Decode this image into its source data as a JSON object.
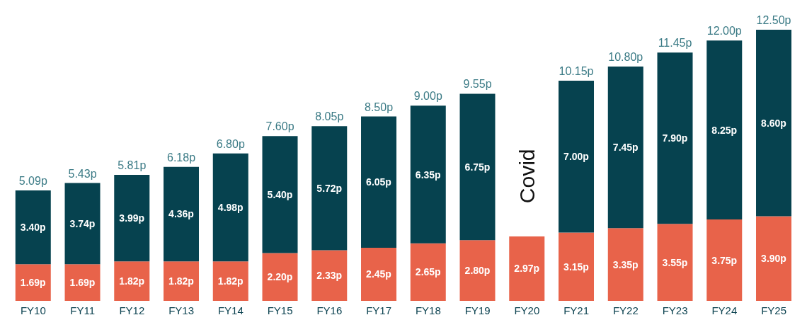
{
  "chart_data": {
    "type": "bar",
    "stacked": true,
    "categories": [
      "FY10",
      "FY11",
      "FY12",
      "FY13",
      "FY14",
      "FY15",
      "FY16",
      "FY17",
      "FY18",
      "FY19",
      "FY20",
      "FY21",
      "FY22",
      "FY23",
      "FY24",
      "FY25"
    ],
    "series": [
      {
        "color": "#e8634a",
        "values": [
          1.69,
          1.69,
          1.82,
          1.82,
          1.82,
          2.2,
          2.33,
          2.45,
          2.65,
          2.8,
          2.97,
          3.15,
          3.35,
          3.55,
          3.75,
          3.9
        ],
        "value_labels": [
          "1.69p",
          "1.69p",
          "1.82p",
          "1.82p",
          "1.82p",
          "2.20p",
          "2.33p",
          "2.45p",
          "2.65p",
          "2.80p",
          "2.97p",
          "3.15p",
          "3.35p",
          "3.55p",
          "3.75p",
          "3.90p"
        ]
      },
      {
        "color": "#06424f",
        "values": [
          3.4,
          3.74,
          3.99,
          4.36,
          4.98,
          5.4,
          5.72,
          6.05,
          6.35,
          6.75,
          null,
          7.0,
          7.45,
          7.9,
          8.25,
          8.6
        ],
        "value_labels": [
          "3.40p",
          "3.74p",
          "3.99p",
          "4.36p",
          "4.98p",
          "5.40p",
          "5.72p",
          "6.05p",
          "6.35p",
          "6.75p",
          null,
          "7.00p",
          "7.45p",
          "7.90p",
          "8.25p",
          "8.60p"
        ]
      }
    ],
    "totals": [
      "5.09p",
      "5.43p",
      "5.81p",
      "6.18p",
      "6.80p",
      "7.60p",
      "8.05p",
      "8.50p",
      "9.00p",
      "9.55p",
      null,
      "10.15p",
      "10.80p",
      "11.45p",
      "12.00p",
      "12.50p"
    ],
    "annotations": [
      "Covid"
    ]
  }
}
